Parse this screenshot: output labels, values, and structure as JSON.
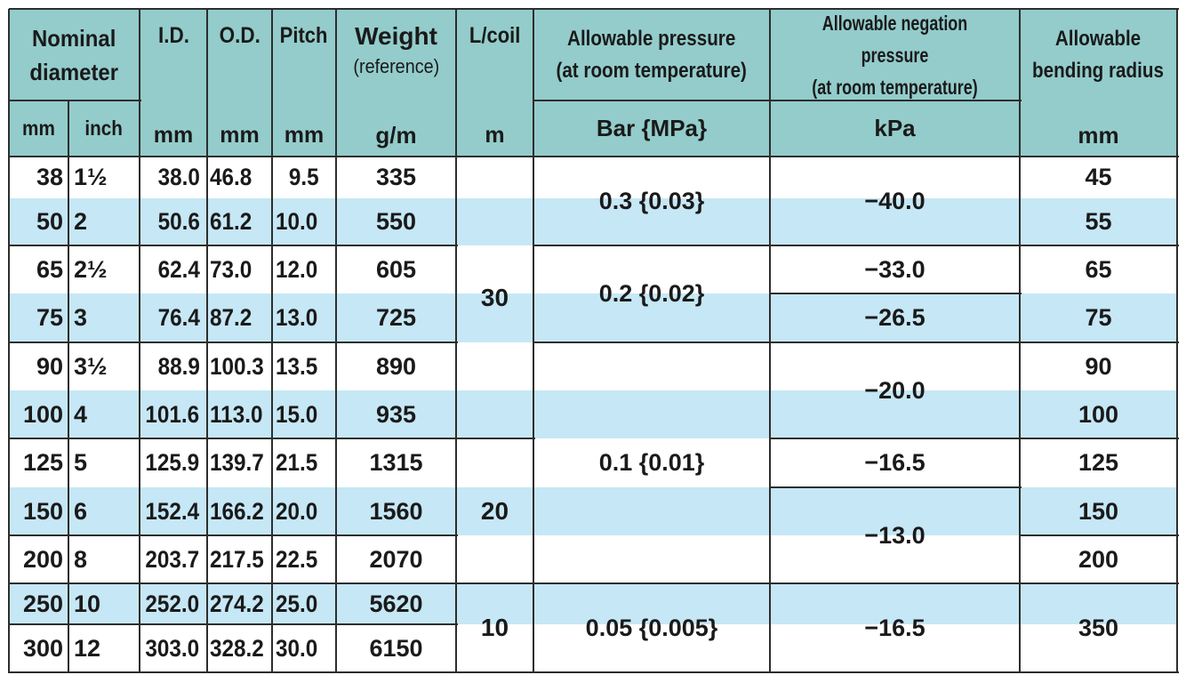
{
  "colors": {
    "header_bg": "#93cccb",
    "stripe_bg": "#c6e7f5",
    "row_bg": "#ffffff",
    "grid_line": "#2d2d2d",
    "text": "#1a1a1a"
  },
  "header": {
    "nominal_diameter": "Nominal\ndiameter",
    "id": "I.D.",
    "od": "O.D.",
    "pitch": "Pitch",
    "weight": "Weight",
    "weight_sub": "(reference)",
    "lcoil": "L/coil",
    "allowable_pressure": "Allowable pressure\n(at room temperature)",
    "allowable_negation": "Allowable negation pressure\n(at room temperature)",
    "bending_radius": "Allowable\nbending radius"
  },
  "units": {
    "mm": "mm",
    "inch": "inch",
    "id": "mm",
    "od": "mm",
    "pitch": "mm",
    "weight": "g/m",
    "lcoil": "m",
    "pressure": "Bar {MPa}",
    "negation": "kPa",
    "radius": "mm"
  },
  "rows": [
    {
      "mm": "38",
      "inch": "1½",
      "id": "38.0",
      "od": "46.8",
      "pitch": "9.5",
      "weight": "335",
      "radius": "45"
    },
    {
      "mm": "50",
      "inch": "2",
      "id": "50.6",
      "od": "61.2",
      "pitch": "10.0",
      "weight": "550",
      "radius": "55"
    },
    {
      "mm": "65",
      "inch": "2½",
      "id": "62.4",
      "od": "73.0",
      "pitch": "12.0",
      "weight": "605",
      "radius": "65"
    },
    {
      "mm": "75",
      "inch": "3",
      "id": "76.4",
      "od": "87.2",
      "pitch": "13.0",
      "weight": "725",
      "radius": "75"
    },
    {
      "mm": "90",
      "inch": "3½",
      "id": "88.9",
      "od": "100.3",
      "pitch": "13.5",
      "weight": "890",
      "radius": "90"
    },
    {
      "mm": "100",
      "inch": "4",
      "id": "101.6",
      "od": "113.0",
      "pitch": "15.0",
      "weight": "935",
      "radius": "100"
    },
    {
      "mm": "125",
      "inch": "5",
      "id": "125.9",
      "od": "139.7",
      "pitch": "21.5",
      "weight": "1315",
      "radius": "125"
    },
    {
      "mm": "150",
      "inch": "6",
      "id": "152.4",
      "od": "166.2",
      "pitch": "20.0",
      "weight": "1560",
      "radius": "150"
    },
    {
      "mm": "200",
      "inch": "8",
      "id": "203.7",
      "od": "217.5",
      "pitch": "22.5",
      "weight": "2070",
      "radius": "200"
    },
    {
      "mm": "250",
      "inch": "10",
      "id": "252.0",
      "od": "274.2",
      "pitch": "25.0",
      "weight": "5620"
    },
    {
      "mm": "300",
      "inch": "12",
      "id": "303.0",
      "od": "328.2",
      "pitch": "30.0",
      "weight": "6150"
    }
  ],
  "merged": {
    "lcoil": [
      {
        "from": 0,
        "to": 6,
        "value": "30"
      },
      {
        "from": 6,
        "to": 9,
        "value": "20"
      },
      {
        "from": 9,
        "to": 11,
        "value": "10"
      }
    ],
    "pressure": [
      {
        "from": 0,
        "to": 2,
        "value": "0.3 {0.03}"
      },
      {
        "from": 2,
        "to": 4,
        "value": "0.2 {0.02}"
      },
      {
        "from": 4,
        "to": 9,
        "value": "0.1 {0.01}"
      },
      {
        "from": 9,
        "to": 11,
        "value": "0.05 {0.005}"
      }
    ],
    "negation": [
      {
        "from": 0,
        "to": 2,
        "value": "−40.0"
      },
      {
        "from": 2,
        "to": 3,
        "value": "−33.0"
      },
      {
        "from": 3,
        "to": 4,
        "value": "−26.5"
      },
      {
        "from": 4,
        "to": 6,
        "value": "−20.0"
      },
      {
        "from": 6,
        "to": 7,
        "value": "−16.5"
      },
      {
        "from": 7,
        "to": 9,
        "value": "−13.0"
      },
      {
        "from": 9,
        "to": 11,
        "value": "−16.5"
      }
    ],
    "radius_last": {
      "from": 9,
      "to": 11,
      "value": "350"
    }
  }
}
